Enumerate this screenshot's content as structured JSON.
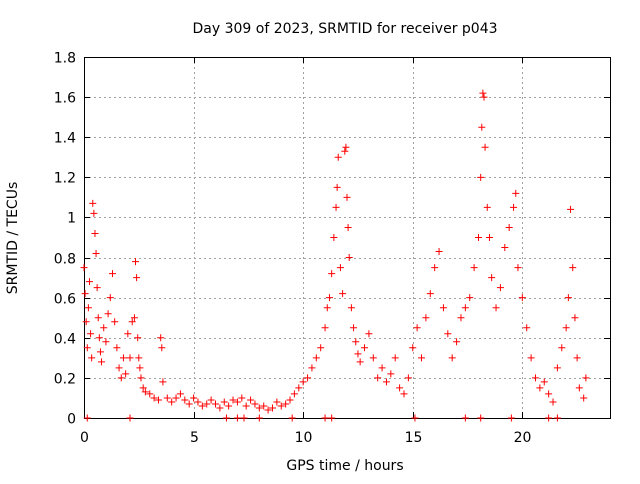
{
  "chart_data": {
    "type": "scatter",
    "title": "Day 309 of 2023, SRMTID for receiver p043",
    "xlabel": "GPS time / hours",
    "ylabel": "SRMTID / TECUs",
    "xlim": [
      0,
      24
    ],
    "ylim": [
      0,
      1.8
    ],
    "x_ticks": [
      0,
      5,
      10,
      15,
      20
    ],
    "x_tick_labels": [
      "0",
      "5",
      "10",
      "15",
      "20"
    ],
    "y_ticks": [
      0,
      0.2,
      0.4,
      0.6,
      0.8,
      1,
      1.2,
      1.4,
      1.6,
      1.8
    ],
    "y_tick_labels": [
      "0",
      "0.2",
      "0.4",
      "0.6",
      "0.8",
      "1",
      "1.2",
      "1.4",
      "1.6",
      "1.8"
    ],
    "grid": true,
    "marker": "+",
    "marker_color": "#ff0000",
    "series": [
      {
        "name": "SRMTID",
        "points": [
          [
            0.0,
            0.75
          ],
          [
            0.05,
            0.62
          ],
          [
            0.1,
            0.48
          ],
          [
            0.15,
            0.35
          ],
          [
            0.2,
            0.55
          ],
          [
            0.25,
            0.68
          ],
          [
            0.3,
            0.42
          ],
          [
            0.35,
            0.3
          ],
          [
            0.4,
            1.07
          ],
          [
            0.45,
            1.02
          ],
          [
            0.5,
            0.92
          ],
          [
            0.55,
            0.82
          ],
          [
            0.6,
            0.65
          ],
          [
            0.65,
            0.5
          ],
          [
            0.7,
            0.4
          ],
          [
            0.75,
            0.33
          ],
          [
            0.8,
            0.28
          ],
          [
            0.9,
            0.45
          ],
          [
            1.0,
            0.38
          ],
          [
            1.1,
            0.52
          ],
          [
            1.2,
            0.6
          ],
          [
            1.3,
            0.72
          ],
          [
            1.4,
            0.48
          ],
          [
            1.5,
            0.35
          ],
          [
            1.6,
            0.25
          ],
          [
            1.7,
            0.2
          ],
          [
            1.8,
            0.3
          ],
          [
            1.9,
            0.22
          ],
          [
            2.0,
            0.42
          ],
          [
            2.1,
            0.3
          ],
          [
            2.2,
            0.48
          ],
          [
            2.3,
            0.5
          ],
          [
            2.35,
            0.78
          ],
          [
            2.4,
            0.7
          ],
          [
            2.45,
            0.4
          ],
          [
            2.5,
            0.3
          ],
          [
            2.55,
            0.25
          ],
          [
            2.6,
            0.2
          ],
          [
            2.7,
            0.15
          ],
          [
            2.8,
            0.13
          ],
          [
            3.0,
            0.12
          ],
          [
            3.2,
            0.1
          ],
          [
            3.4,
            0.09
          ],
          [
            3.5,
            0.4
          ],
          [
            3.55,
            0.35
          ],
          [
            3.6,
            0.18
          ],
          [
            3.8,
            0.1
          ],
          [
            4.0,
            0.08
          ],
          [
            4.2,
            0.1
          ],
          [
            4.4,
            0.12
          ],
          [
            4.6,
            0.09
          ],
          [
            4.8,
            0.07
          ],
          [
            5.0,
            0.1
          ],
          [
            5.2,
            0.08
          ],
          [
            5.4,
            0.06
          ],
          [
            5.6,
            0.07
          ],
          [
            5.8,
            0.09
          ],
          [
            6.0,
            0.07
          ],
          [
            6.2,
            0.05
          ],
          [
            6.4,
            0.08
          ],
          [
            6.6,
            0.06
          ],
          [
            6.8,
            0.09
          ],
          [
            7.0,
            0.08
          ],
          [
            7.2,
            0.1
          ],
          [
            7.4,
            0.06
          ],
          [
            7.6,
            0.09
          ],
          [
            7.8,
            0.07
          ],
          [
            8.0,
            0.05
          ],
          [
            8.2,
            0.06
          ],
          [
            8.4,
            0.04
          ],
          [
            8.6,
            0.05
          ],
          [
            8.8,
            0.08
          ],
          [
            9.0,
            0.06
          ],
          [
            9.2,
            0.07
          ],
          [
            9.4,
            0.09
          ],
          [
            9.6,
            0.12
          ],
          [
            9.8,
            0.15
          ],
          [
            10.0,
            0.18
          ],
          [
            10.2,
            0.2
          ],
          [
            10.4,
            0.25
          ],
          [
            10.6,
            0.3
          ],
          [
            10.8,
            0.35
          ],
          [
            11.0,
            0.45
          ],
          [
            11.1,
            0.55
          ],
          [
            11.2,
            0.6
          ],
          [
            11.3,
            0.72
          ],
          [
            11.4,
            0.9
          ],
          [
            11.5,
            1.05
          ],
          [
            11.55,
            1.15
          ],
          [
            11.6,
            1.3
          ],
          [
            11.7,
            0.75
          ],
          [
            11.8,
            0.62
          ],
          [
            11.9,
            1.33
          ],
          [
            11.95,
            1.35
          ],
          [
            12.0,
            1.1
          ],
          [
            12.05,
            0.95
          ],
          [
            12.1,
            0.8
          ],
          [
            12.2,
            0.55
          ],
          [
            12.3,
            0.45
          ],
          [
            12.4,
            0.38
          ],
          [
            12.5,
            0.32
          ],
          [
            12.6,
            0.28
          ],
          [
            12.8,
            0.35
          ],
          [
            13.0,
            0.42
          ],
          [
            13.2,
            0.3
          ],
          [
            13.4,
            0.2
          ],
          [
            13.6,
            0.25
          ],
          [
            13.8,
            0.18
          ],
          [
            14.0,
            0.22
          ],
          [
            14.2,
            0.3
          ],
          [
            14.4,
            0.15
          ],
          [
            14.6,
            0.12
          ],
          [
            14.8,
            0.2
          ],
          [
            15.0,
            0.35
          ],
          [
            15.2,
            0.45
          ],
          [
            15.4,
            0.3
          ],
          [
            15.6,
            0.5
          ],
          [
            15.8,
            0.62
          ],
          [
            16.0,
            0.75
          ],
          [
            16.2,
            0.83
          ],
          [
            16.4,
            0.55
          ],
          [
            16.6,
            0.42
          ],
          [
            16.8,
            0.3
          ],
          [
            17.0,
            0.38
          ],
          [
            17.2,
            0.5
          ],
          [
            17.4,
            0.55
          ],
          [
            17.6,
            0.6
          ],
          [
            17.8,
            0.75
          ],
          [
            18.0,
            0.9
          ],
          [
            18.1,
            1.2
          ],
          [
            18.15,
            1.45
          ],
          [
            18.2,
            1.62
          ],
          [
            18.25,
            1.6
          ],
          [
            18.3,
            1.35
          ],
          [
            18.4,
            1.05
          ],
          [
            18.5,
            0.9
          ],
          [
            18.6,
            0.7
          ],
          [
            18.8,
            0.55
          ],
          [
            19.0,
            0.65
          ],
          [
            19.2,
            0.85
          ],
          [
            19.4,
            0.95
          ],
          [
            19.6,
            1.05
          ],
          [
            19.7,
            1.12
          ],
          [
            19.8,
            0.75
          ],
          [
            20.0,
            0.6
          ],
          [
            20.2,
            0.45
          ],
          [
            20.4,
            0.3
          ],
          [
            20.6,
            0.2
          ],
          [
            20.8,
            0.15
          ],
          [
            21.0,
            0.18
          ],
          [
            21.2,
            0.12
          ],
          [
            21.4,
            0.08
          ],
          [
            21.6,
            0.25
          ],
          [
            21.8,
            0.35
          ],
          [
            22.0,
            0.45
          ],
          [
            22.1,
            0.6
          ],
          [
            22.2,
            1.04
          ],
          [
            22.3,
            0.75
          ],
          [
            22.4,
            0.5
          ],
          [
            22.5,
            0.3
          ],
          [
            22.6,
            0.15
          ],
          [
            22.8,
            0.1
          ],
          [
            22.9,
            0.2
          ],
          [
            0.15,
            0.0
          ],
          [
            2.1,
            0.0
          ],
          [
            6.5,
            0.0
          ],
          [
            7.0,
            0.0
          ],
          [
            7.3,
            0.0
          ],
          [
            8.0,
            0.0
          ],
          [
            9.5,
            0.0
          ],
          [
            11.0,
            0.0
          ],
          [
            11.3,
            0.0
          ],
          [
            15.1,
            0.0
          ],
          [
            17.4,
            0.0
          ],
          [
            18.1,
            0.0
          ],
          [
            19.5,
            0.0
          ],
          [
            21.2,
            0.0
          ],
          [
            21.6,
            0.0
          ]
        ]
      }
    ]
  }
}
